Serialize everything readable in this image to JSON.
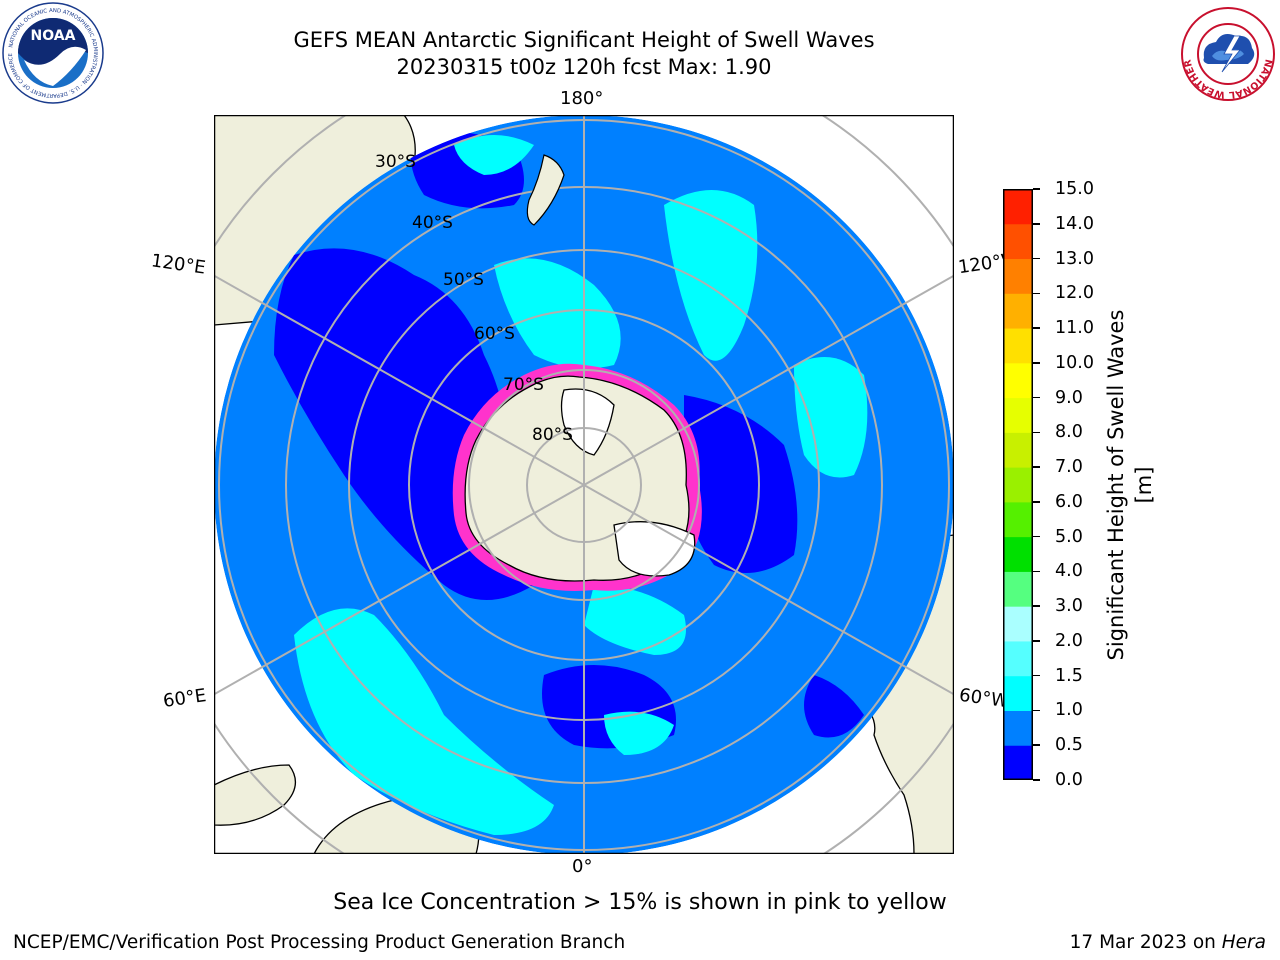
{
  "title": {
    "line1": "GEFS MEAN Antarctic Significant Height of Swell Waves",
    "line2": "20230315 t00z 120h fcst   Max: 1.90"
  },
  "map": {
    "projection": "south-polar-stereographic",
    "longitude_labels": [
      "180°",
      "120°E",
      "120°W",
      "60°E",
      "60°W",
      "0°"
    ],
    "latitude_labels": [
      "30°S",
      "40°S",
      "50°S",
      "60°S",
      "70°S",
      "80°S"
    ]
  },
  "colorbar": {
    "title": "Significant Height of Swell Waves [m]",
    "ticks": [
      "0.0",
      "0.5",
      "1.0",
      "1.5",
      "2.0",
      "3.0",
      "4.0",
      "5.0",
      "6.0",
      "7.0",
      "8.0",
      "9.0",
      "10.0",
      "11.0",
      "12.0",
      "13.0",
      "14.0",
      "15.0"
    ],
    "colors": [
      "#0000ff",
      "#0080ff",
      "#00ffff",
      "#55ffff",
      "#aaffff",
      "#55ff80",
      "#00e000",
      "#55f000",
      "#9af000",
      "#c8f000",
      "#e6ff00",
      "#ffff00",
      "#ffe000",
      "#ffb000",
      "#ff8000",
      "#ff5000",
      "#ff2000"
    ]
  },
  "sea_ice_note": "Sea Ice Concentration > 15% is shown in pink to yellow",
  "footer": {
    "left": "NCEP/EMC/Verification Post Processing Product Generation Branch",
    "date": "17 Mar 2023 on ",
    "machine": "Hera"
  },
  "logos": {
    "noaa": {
      "label": "NOAA",
      "ring_text": "NATIONAL OCEANIC AND ATMOSPHERIC ADMINISTRATION · U.S. DEPARTMENT OF COMMERCE"
    },
    "nws": {
      "ring_text": "NATIONAL WEATHER SERVICE"
    }
  }
}
